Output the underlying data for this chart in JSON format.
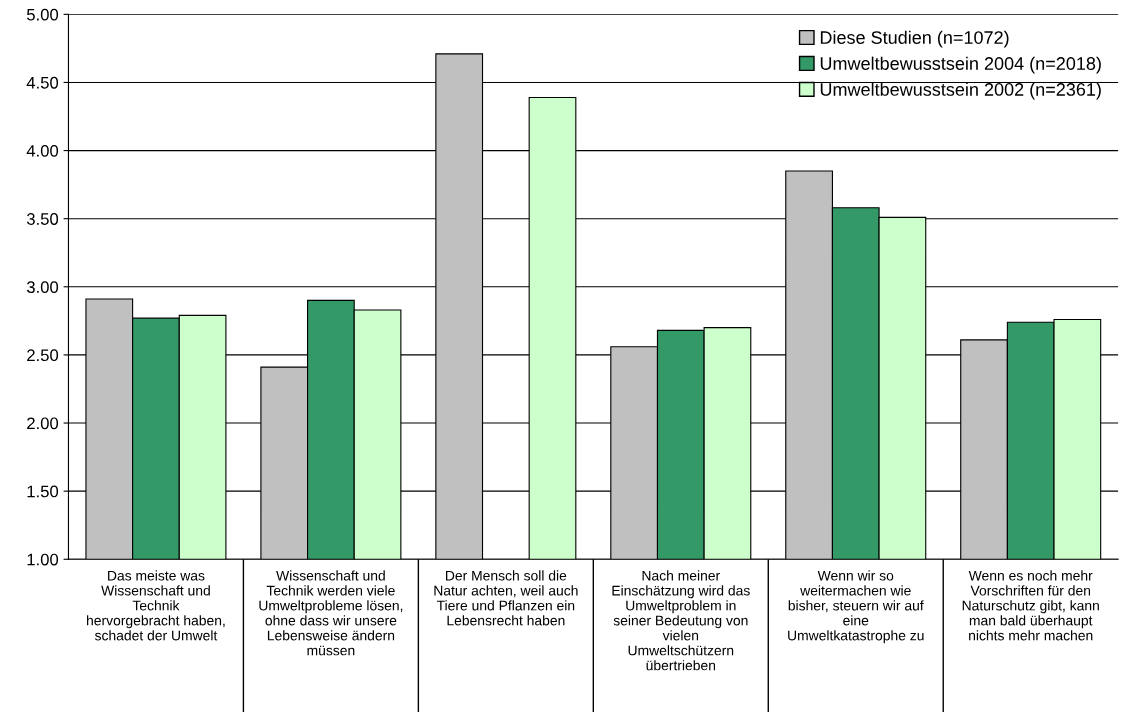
{
  "chart_data": {
    "type": "bar",
    "categories": [
      "Das meiste was\nWissenschaft und\nTechnik\nhervorgebracht haben,\nschadet der Umwelt",
      "Wissenschaft und\nTechnik werden viele\nUmweltprobleme lösen,\nohne dass wir unsere\nLebensweise ändern\nmüssen",
      "Der Mensch soll die\nNatur achten, weil auch\nTiere und Pflanzen ein\nLebensrecht haben",
      "Nach meiner\nEinschätzung wird das\nUmweltproblem in\nseiner Bedeutung von\nvielen\nUmweltschützern\nübertrieben",
      "Wenn wir so\nweitermachen wie\nbisher, steuern wir auf\neine\nUmweltkatastrophe zu",
      "Wenn es noch mehr\nVorschriften für den\nNaturschutz gibt, kann\nman bald überhaupt\nnichts mehr machen"
    ],
    "series": [
      {
        "name": "Diese Studien (n=1072)",
        "color": "#c0c0c0",
        "values": [
          2.91,
          2.41,
          4.71,
          2.56,
          3.85,
          2.61
        ]
      },
      {
        "name": "Umweltbewusstsein 2004 (n=2018)",
        "color": "#339966",
        "values": [
          2.77,
          2.9,
          null,
          2.68,
          3.58,
          2.74
        ]
      },
      {
        "name": "Umweltbewusstsein 2002 (n=2361)",
        "color": "#ccffcc",
        "values": [
          2.79,
          2.83,
          4.39,
          2.7,
          3.51,
          2.76
        ]
      }
    ],
    "ylim": [
      1,
      5
    ],
    "yticks": [
      {
        "value": 1,
        "label": "1.00"
      },
      {
        "value": 1.5,
        "label": "1.50"
      },
      {
        "value": 2,
        "label": "2.00"
      },
      {
        "value": 2.5,
        "label": "2.50"
      },
      {
        "value": 3,
        "label": "3.00"
      },
      {
        "value": 3.5,
        "label": "3.50"
      },
      {
        "value": 4,
        "label": "4.00"
      },
      {
        "value": 4.5,
        "label": "4.50"
      },
      {
        "value": 5,
        "label": "5.00"
      }
    ],
    "grid": "y",
    "legend": "top right"
  }
}
